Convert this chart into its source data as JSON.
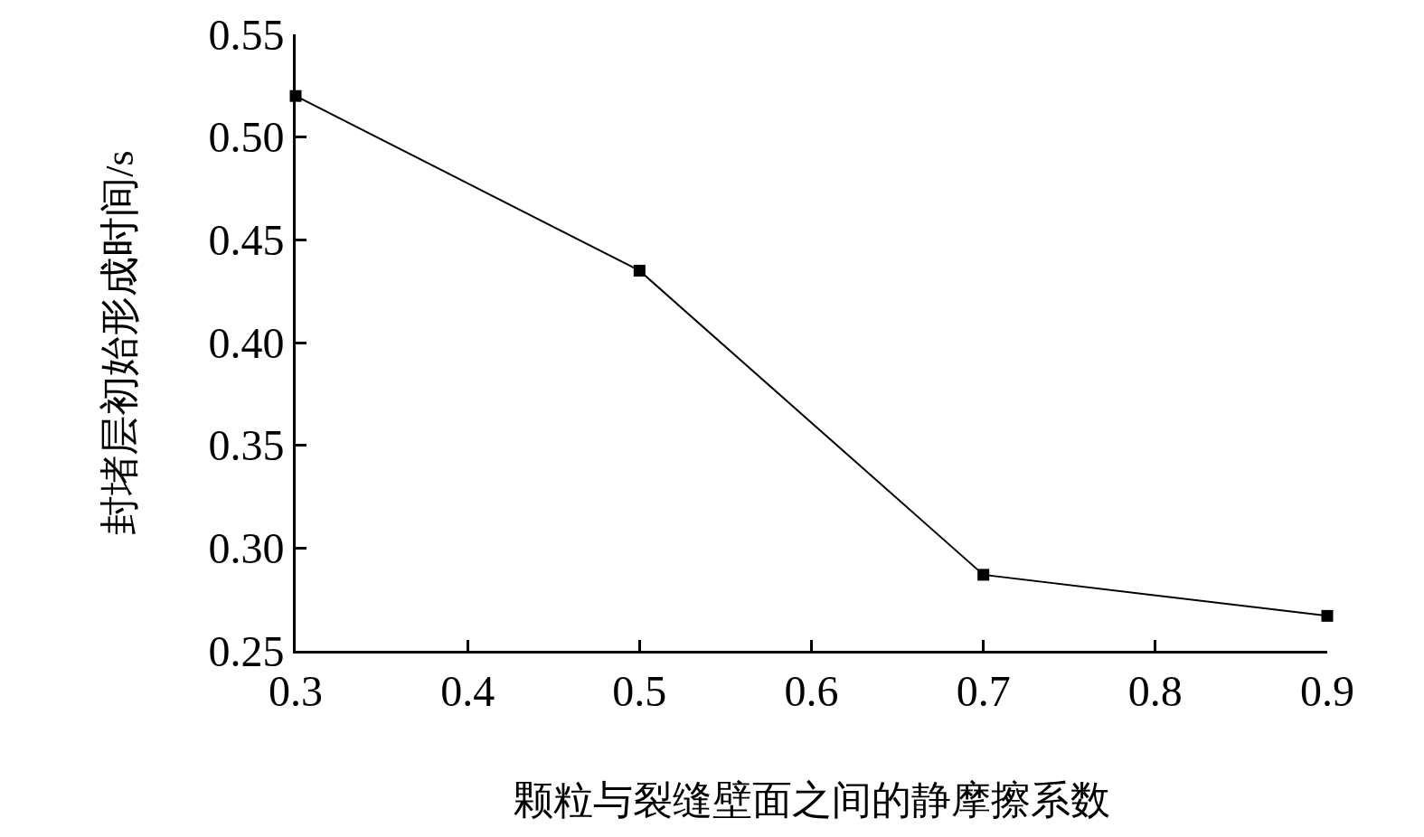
{
  "chart_data": {
    "type": "line",
    "xlabel": "颗粒与裂缝壁面之间的静摩擦系数",
    "ylabel": "封堵层初始形成时间/s",
    "x": [
      0.3,
      0.5,
      0.7,
      0.9
    ],
    "series": [
      {
        "color": "#000000",
        "values": [
          0.52,
          0.435,
          0.287,
          0.267
        ]
      }
    ],
    "xlim": [
      0.3,
      0.9
    ],
    "xticks": [
      0.3,
      0.4,
      0.5,
      0.6,
      0.7,
      0.8,
      0.9
    ],
    "ylim": [
      0.25,
      0.55
    ],
    "yticks": [
      {
        "value": 0.25,
        "label": "0.25"
      },
      {
        "value": 0.3,
        "label": "0.30"
      },
      {
        "value": 0.35,
        "label": "0.35"
      },
      {
        "value": 0.4,
        "label": "0.40"
      },
      {
        "value": 0.45,
        "label": "0.45"
      },
      {
        "value": 0.5,
        "label": "0.50"
      },
      {
        "value": 0.55,
        "label": "0.55"
      }
    ],
    "legend": false,
    "marker": "square",
    "line_style": "solid"
  }
}
